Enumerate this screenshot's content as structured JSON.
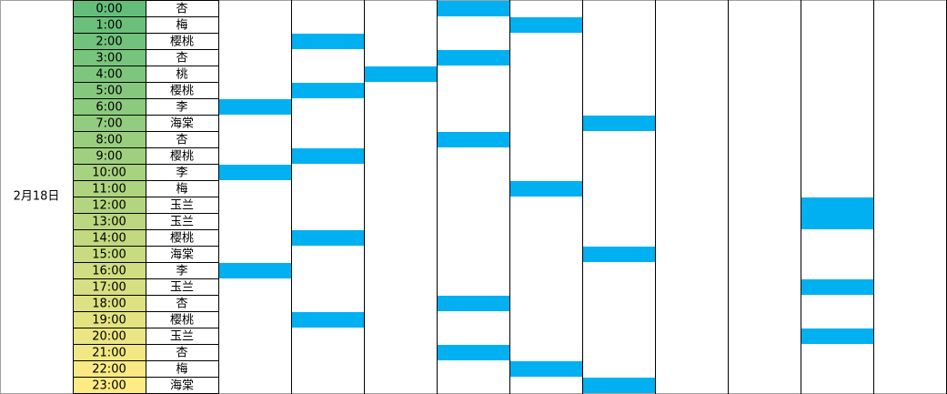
{
  "date": "2月18日",
  "rows": [
    {
      "time": "0:00",
      "name": "杏"
    },
    {
      "time": "1:00",
      "name": "梅"
    },
    {
      "time": "2:00",
      "name": "樱桃"
    },
    {
      "time": "3:00",
      "name": "杏"
    },
    {
      "time": "4:00",
      "name": "桃"
    },
    {
      "time": "5:00",
      "name": "樱桃"
    },
    {
      "time": "6:00",
      "name": "李"
    },
    {
      "time": "7:00",
      "name": "海棠"
    },
    {
      "time": "8:00",
      "name": "杏"
    },
    {
      "time": "9:00",
      "name": "樱桃"
    },
    {
      "time": "10:00",
      "name": "李"
    },
    {
      "time": "11:00",
      "name": "梅"
    },
    {
      "time": "12:00",
      "name": "玉兰"
    },
    {
      "time": "13:00",
      "name": "玉兰"
    },
    {
      "time": "14:00",
      "name": "樱桃"
    },
    {
      "time": "15:00",
      "name": "海棠"
    },
    {
      "time": "16:00",
      "name": "李"
    },
    {
      "time": "17:00",
      "name": "玉兰"
    },
    {
      "time": "18:00",
      "name": "杏"
    },
    {
      "time": "19:00",
      "name": "樱桃"
    },
    {
      "time": "20:00",
      "name": "玉兰"
    },
    {
      "time": "21:00",
      "name": "杏"
    },
    {
      "time": "22:00",
      "name": "梅"
    },
    {
      "time": "23:00",
      "name": "海棠"
    }
  ]
}
